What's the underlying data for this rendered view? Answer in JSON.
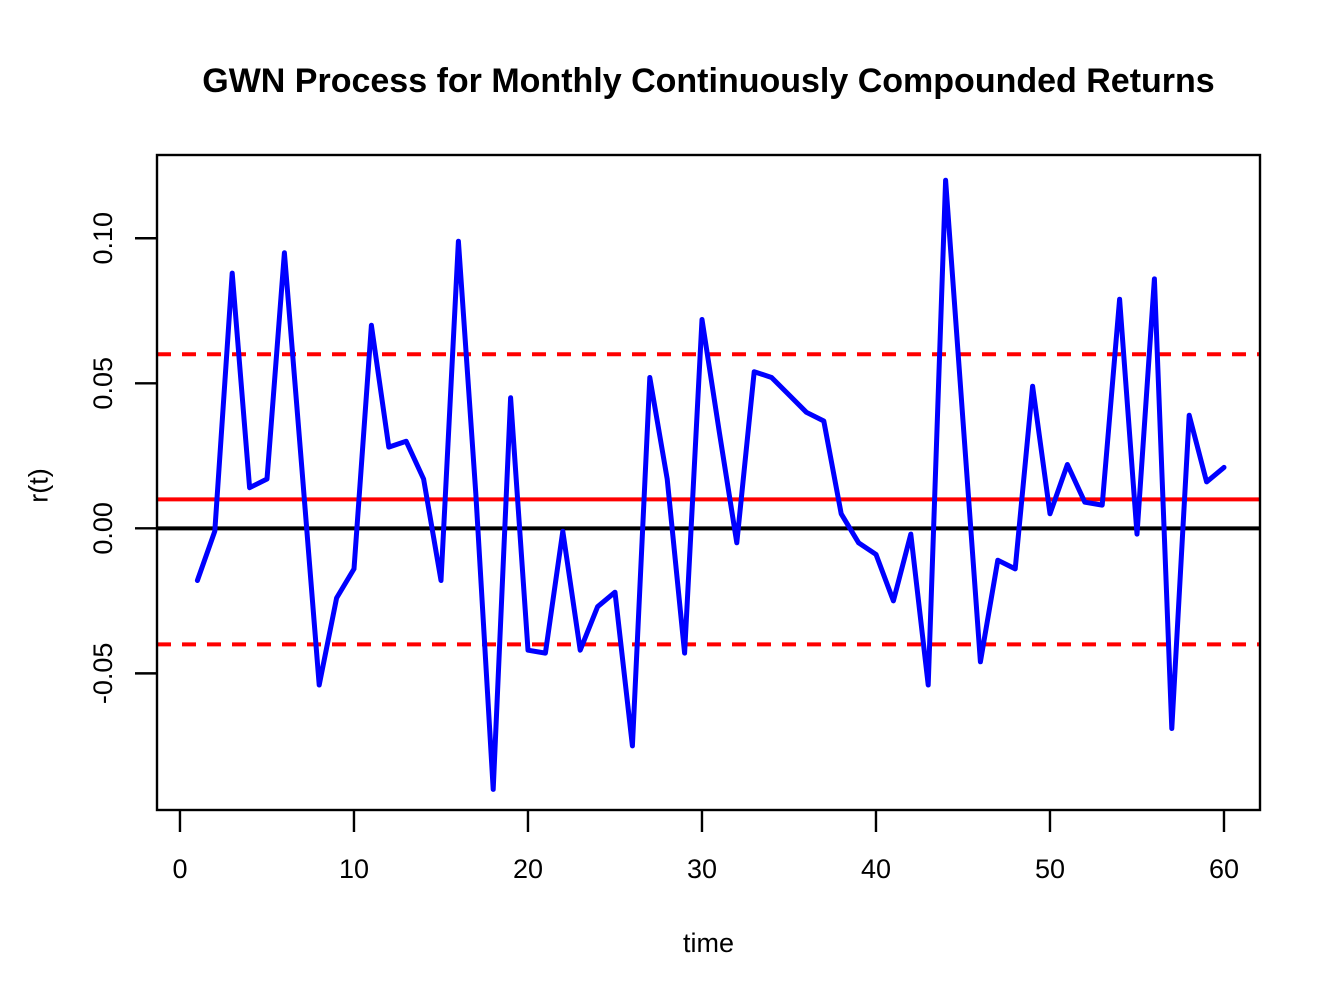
{
  "chart_data": {
    "type": "line",
    "title": "GWN Process for Monthly Continuously Compounded Returns",
    "xlabel": "time",
    "ylabel": "r(t)",
    "grid": false,
    "legend": "none",
    "xlim": [
      -1.32,
      62.07
    ],
    "ylim": [
      -0.0971,
      0.1287
    ],
    "x_ticks": {
      "values": [
        0,
        10,
        20,
        30,
        40,
        50,
        60
      ],
      "labels": [
        "0",
        "10",
        "20",
        "30",
        "40",
        "50",
        "60"
      ]
    },
    "y_ticks": {
      "values": [
        -0.05,
        0.0,
        0.05,
        0.1
      ],
      "labels": [
        "-0.05",
        "0.00",
        "0.05",
        "0.10"
      ]
    },
    "series": [
      {
        "name": "gwn-returns",
        "color": "#0000ff",
        "style": "solid",
        "x": [
          1,
          2,
          3,
          4,
          5,
          6,
          7,
          8,
          9,
          10,
          11,
          12,
          13,
          14,
          15,
          16,
          17,
          18,
          19,
          20,
          21,
          22,
          23,
          24,
          25,
          26,
          27,
          28,
          29,
          30,
          31,
          32,
          33,
          34,
          35,
          36,
          37,
          38,
          39,
          40,
          41,
          42,
          43,
          44,
          45,
          46,
          47,
          48,
          49,
          50,
          51,
          52,
          53,
          54,
          55,
          56,
          57,
          58,
          59,
          60
        ],
        "values": [
          -0.018,
          -0.001,
          0.088,
          0.014,
          0.017,
          0.095,
          0.021,
          -0.054,
          -0.024,
          -0.014,
          0.07,
          0.028,
          0.03,
          0.017,
          -0.018,
          0.099,
          0.012,
          -0.09,
          0.045,
          -0.042,
          -0.043,
          -0.001,
          -0.042,
          -0.027,
          -0.022,
          -0.075,
          0.052,
          0.017,
          -0.043,
          0.072,
          0.033,
          -0.005,
          0.054,
          0.052,
          0.046,
          0.04,
          0.037,
          0.005,
          -0.005,
          -0.009,
          -0.025,
          -0.002,
          -0.054,
          0.12,
          0.037,
          -0.046,
          -0.011,
          -0.014,
          0.049,
          0.005,
          0.022,
          0.009,
          0.008,
          0.079,
          -0.002,
          0.086,
          -0.069,
          0.039,
          0.016,
          0.021
        ]
      }
    ],
    "horizontal_lines": [
      {
        "name": "zero-line",
        "y": 0.0,
        "color": "#000000",
        "style": "solid"
      },
      {
        "name": "mean-line",
        "y": 0.01,
        "color": "#ff0000",
        "style": "solid"
      },
      {
        "name": "upper-band-line",
        "y": 0.06,
        "color": "#ff0000",
        "style": "dashed"
      },
      {
        "name": "lower-band-line",
        "y": -0.04,
        "color": "#ff0000",
        "style": "dashed"
      }
    ]
  }
}
